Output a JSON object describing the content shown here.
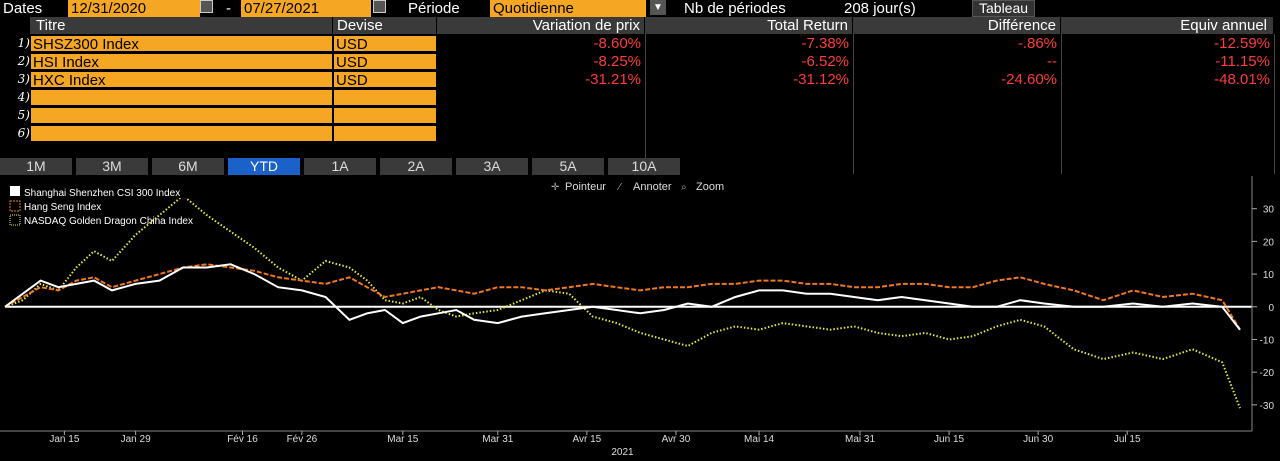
{
  "header": {
    "dates_label": "Dates",
    "start_date": "12/31/2020",
    "separator": "-",
    "end_date": "07/27/2021",
    "period_label": "Période",
    "period_value": "Quotidienne",
    "nb_periods_label": "Nb de périodes",
    "nb_periods_value": "208 jour(s)",
    "tableau_button": "Tableau"
  },
  "table": {
    "columns": [
      "Titre",
      "Devise",
      "Variation de prix",
      "Total Return",
      "Différence",
      "Equiv annuel"
    ],
    "row_numbers": [
      "1)",
      "2)",
      "3)",
      "4)",
      "5)",
      "6)"
    ],
    "rows": [
      {
        "titre": "SHSZ300 Index",
        "devise": "USD",
        "variation": "-8.60%",
        "total_return": "-7.38%",
        "difference": "-.86%",
        "equiv": "-12.59%"
      },
      {
        "titre": "HSI Index",
        "devise": "USD",
        "variation": "-8.25%",
        "total_return": "-6.52%",
        "difference": "--",
        "equiv": "-11.15%"
      },
      {
        "titre": "HXC Index",
        "devise": "USD",
        "variation": "-31.21%",
        "total_return": "-31.12%",
        "difference": "-24.60%",
        "equiv": "-48.01%"
      }
    ]
  },
  "tabs": [
    "1M",
    "3M",
    "6M",
    "YTD",
    "1A",
    "2A",
    "3A",
    "5A",
    "10A"
  ],
  "active_tab": "YTD",
  "toolbar": {
    "pointer": "Pointeur",
    "annotate": "Annoter",
    "zoom": "Zoom"
  },
  "colors": {
    "accent": "#f5a623",
    "negative": "#ff3b3b",
    "active_tab": "#1a62c9",
    "series1": "#ffffff",
    "series2": "#f07820",
    "series3": "#e8e83a"
  },
  "chart_data": {
    "type": "line",
    "x_ticks": [
      "Jan 15",
      "Jan 29",
      "Fév 16",
      "Fév 26",
      "Mar 15",
      "Mar 31",
      "Avr 15",
      "Avr 30",
      "Mai 14",
      "Mai 31",
      "Jun 15",
      "Jun 30",
      "Jul 15"
    ],
    "x_year_label": "2021",
    "y_ticks": [
      "30",
      "20",
      "10",
      "0",
      "-10",
      "-20",
      "-30"
    ],
    "ylim": [
      -38,
      40
    ],
    "legend": [
      "Shanghai Shenzhen CSI 300 Index",
      "Hang Seng Index",
      "NASDAQ Golden Dragon China Index"
    ],
    "series": [
      {
        "name": "Shanghai Shenzhen CSI 300 Index",
        "x": [
          0,
          3,
          6,
          9,
          12,
          15,
          18,
          22,
          26,
          30,
          34,
          38,
          42,
          46,
          50,
          54,
          58,
          61,
          64,
          67,
          70,
          73,
          76,
          79,
          83,
          87,
          91,
          95,
          99,
          103,
          107,
          111,
          115,
          119,
          123,
          127,
          131,
          135,
          139,
          143,
          147,
          151,
          155,
          159,
          163,
          167,
          171,
          175,
          180,
          185,
          190,
          195,
          200,
          205,
          208
        ],
        "values": [
          0,
          4,
          8,
          6,
          7,
          8,
          5,
          7,
          8,
          12,
          12,
          13,
          10,
          6,
          5,
          3,
          -4,
          -2,
          -1,
          -5,
          -3,
          -2,
          -1,
          -4,
          -5,
          -3,
          -2,
          -1,
          0,
          -1,
          -2,
          -1,
          1,
          0,
          3,
          5,
          5,
          4,
          4,
          3,
          2,
          3,
          2,
          1,
          0,
          0,
          2,
          1,
          0,
          0,
          1,
          0,
          1,
          0,
          -7
        ]
      },
      {
        "name": "Hang Seng Index",
        "x": [
          0,
          3,
          6,
          9,
          12,
          15,
          18,
          22,
          26,
          30,
          34,
          38,
          42,
          46,
          50,
          54,
          58,
          61,
          64,
          67,
          70,
          73,
          76,
          79,
          83,
          87,
          91,
          95,
          99,
          103,
          107,
          111,
          115,
          119,
          123,
          127,
          131,
          135,
          139,
          143,
          147,
          151,
          155,
          159,
          163,
          167,
          171,
          175,
          180,
          185,
          190,
          195,
          200,
          205,
          208
        ],
        "values": [
          0,
          3,
          6,
          5,
          8,
          9,
          6,
          8,
          10,
          12,
          13,
          12,
          11,
          9,
          8,
          7,
          9,
          6,
          3,
          4,
          5,
          6,
          5,
          4,
          6,
          6,
          5,
          6,
          7,
          6,
          5,
          6,
          6,
          7,
          7,
          8,
          8,
          7,
          7,
          6,
          6,
          7,
          7,
          6,
          6,
          8,
          9,
          7,
          5,
          2,
          5,
          3,
          4,
          2,
          -7
        ]
      },
      {
        "name": "NASDAQ Golden Dragon China Index",
        "x": [
          0,
          3,
          6,
          9,
          12,
          15,
          18,
          22,
          26,
          30,
          34,
          38,
          42,
          46,
          50,
          54,
          58,
          61,
          64,
          67,
          70,
          73,
          76,
          79,
          83,
          87,
          91,
          95,
          99,
          103,
          107,
          111,
          115,
          119,
          123,
          127,
          131,
          135,
          139,
          143,
          147,
          151,
          155,
          159,
          163,
          167,
          171,
          175,
          180,
          185,
          190,
          195,
          200,
          205,
          208
        ],
        "values": [
          0,
          2,
          7,
          5,
          12,
          17,
          14,
          22,
          28,
          34,
          28,
          23,
          18,
          12,
          8,
          14,
          12,
          8,
          2,
          1,
          3,
          -1,
          -3,
          -2,
          -1,
          2,
          5,
          4,
          -3,
          -5,
          -8,
          -10,
          -12,
          -8,
          -6,
          -7,
          -5,
          -6,
          -7,
          -6,
          -8,
          -9,
          -8,
          -10,
          -9,
          -6,
          -4,
          -6,
          -13,
          -16,
          -14,
          -16,
          -13,
          -17,
          -31
        ]
      }
    ]
  }
}
